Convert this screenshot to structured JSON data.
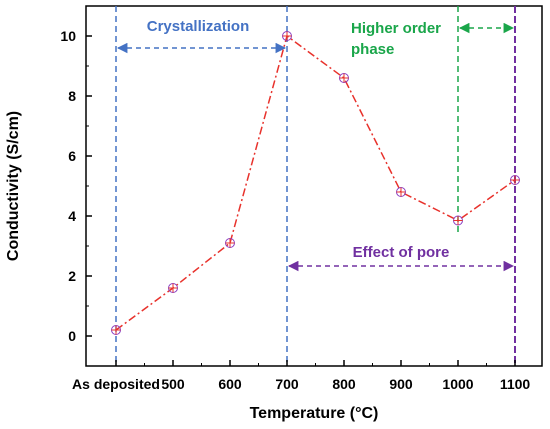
{
  "chart_data": {
    "type": "line",
    "xlabel": "Temperature (°C)",
    "ylabel": "Conductivity (S/cm)",
    "categories": [
      "As deposited",
      "500",
      "600",
      "700",
      "800",
      "900",
      "1000",
      "1100"
    ],
    "values": [
      0.2,
      1.6,
      3.1,
      10.0,
      8.6,
      4.8,
      3.85,
      5.2
    ],
    "ylim": [
      -1,
      11
    ],
    "yticks": [
      "0",
      "2",
      "4",
      "6",
      "8",
      "10"
    ],
    "grid": false,
    "colors": {
      "series": "#e8322c",
      "marker": "#8a3fc2",
      "blue": "#4472c4",
      "green": "#1aa64a",
      "purple": "#7030a0"
    },
    "annotations": {
      "crystallization": "Crystallization",
      "higher_order_1": "Higher order",
      "higher_order_2": "phase",
      "effect_of_pore": "Effect of pore"
    }
  }
}
